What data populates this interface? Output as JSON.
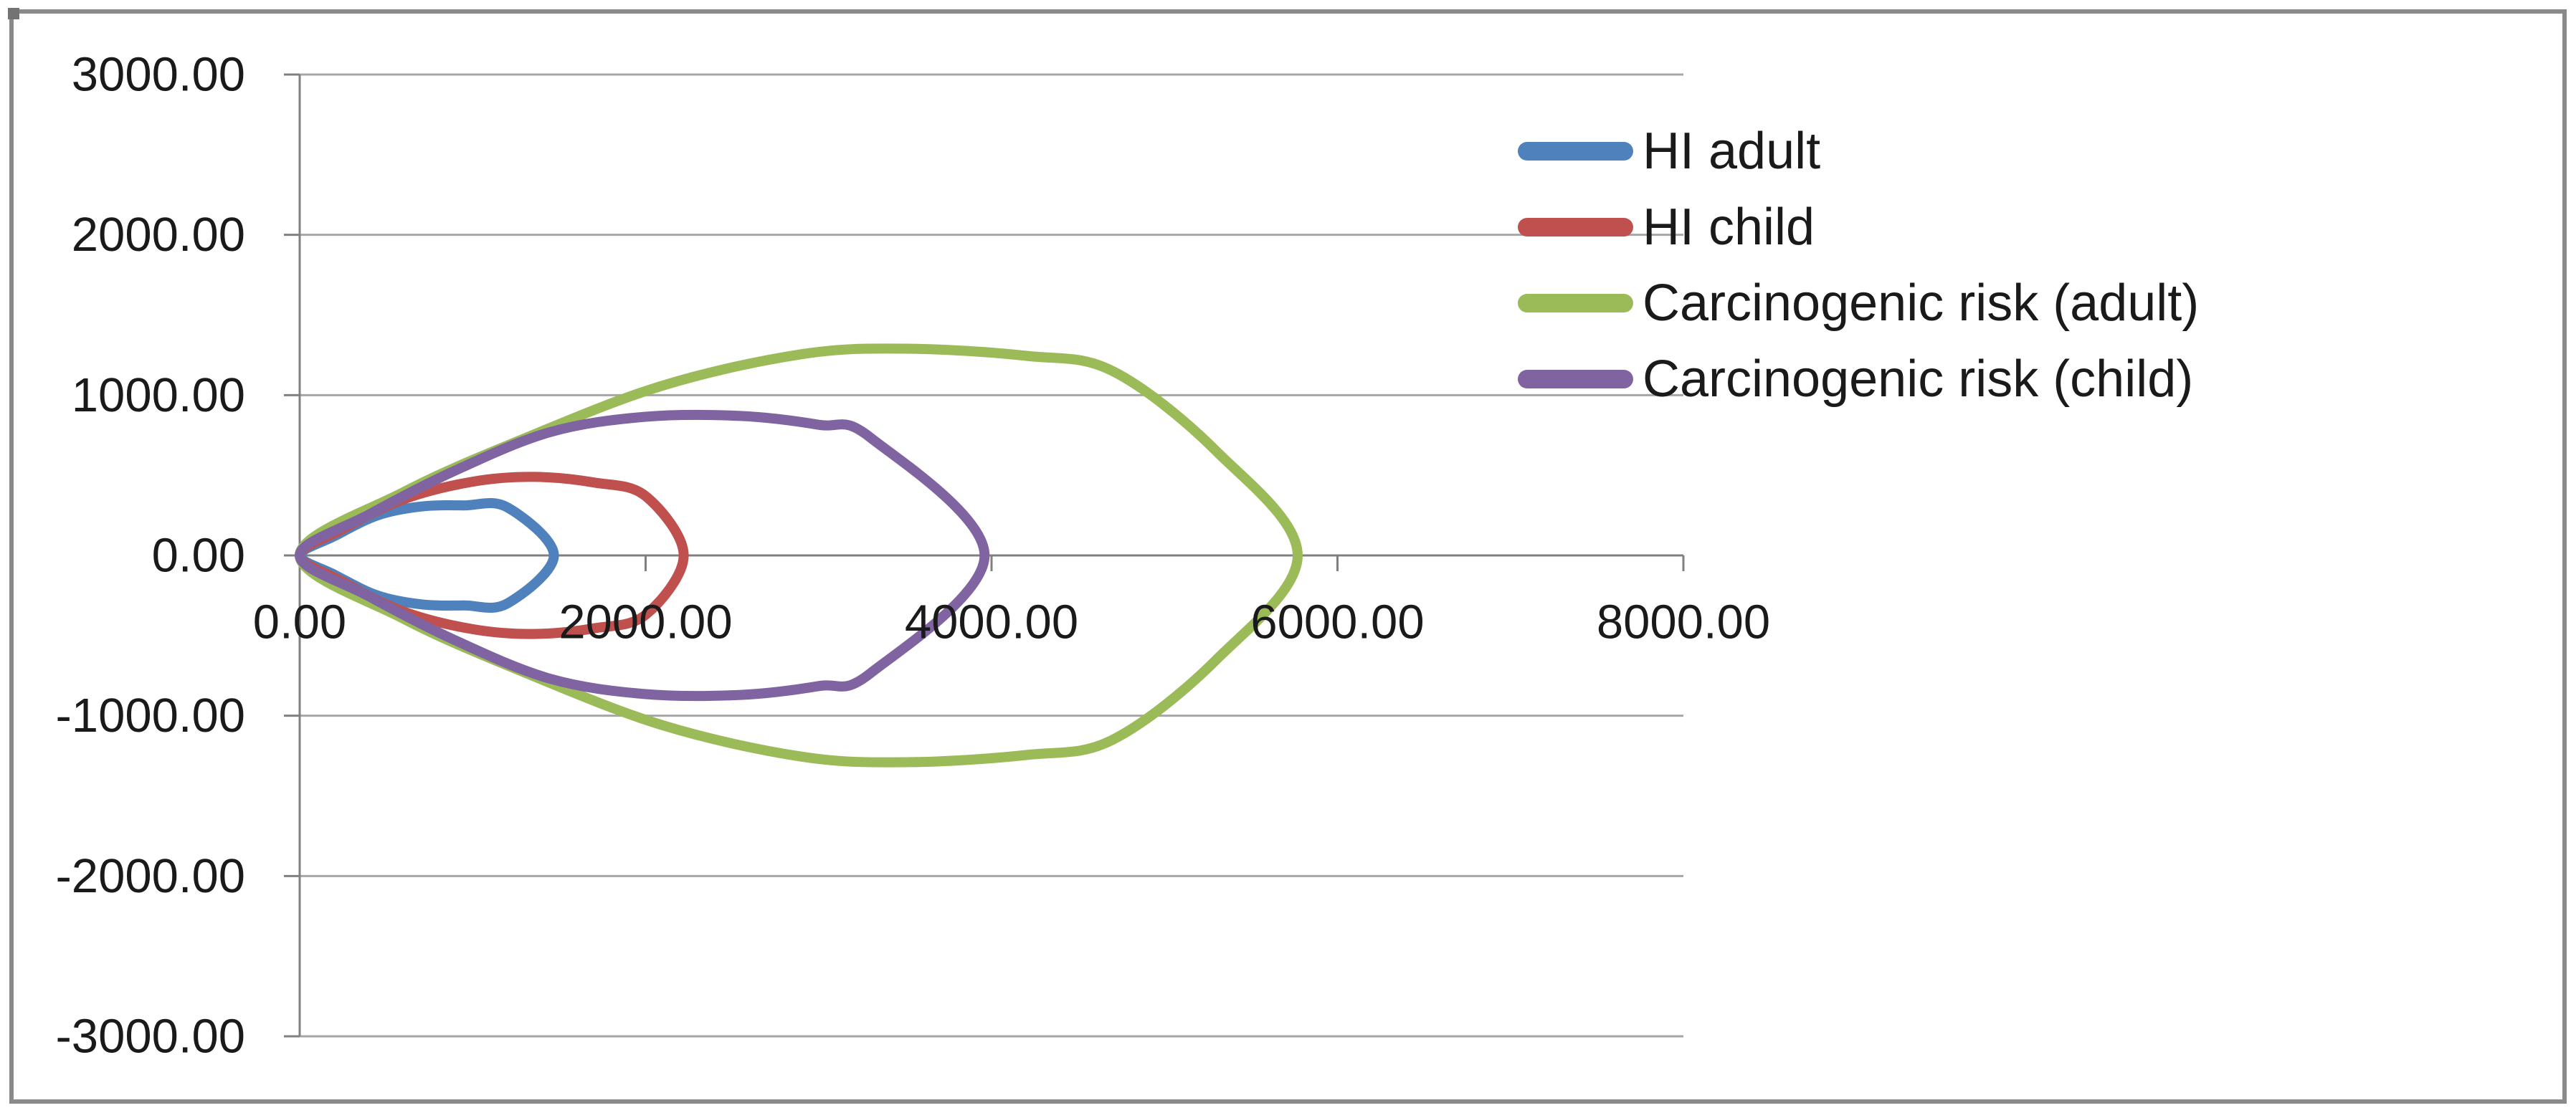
{
  "chart_data": {
    "type": "scatter",
    "subtype": "smooth-closed-petals",
    "title": "",
    "xlabel": "",
    "ylabel": "",
    "grid": "horizontal-only",
    "legend_position": "right",
    "x_axis": {
      "min": 0,
      "max": 8000,
      "major_unit": 2000,
      "tick_labels": [
        "0.00",
        "2000.00",
        "4000.00",
        "6000.00",
        "8000.00"
      ]
    },
    "y_axis": {
      "min": -3000,
      "max": 3000,
      "major_unit": 1000,
      "tick_labels": [
        "3000.00",
        "2000.00",
        "1000.00",
        "0.00",
        "-1000.00",
        "-2000.00",
        "-3000.00"
      ]
    },
    "series": [
      {
        "name": "HI adult",
        "color": "#4F81BD",
        "points": [
          [
            0,
            0
          ],
          [
            200,
            120
          ],
          [
            450,
            250
          ],
          [
            700,
            305
          ],
          [
            950,
            312
          ],
          [
            1200,
            300
          ],
          [
            1470,
            0
          ],
          [
            1200,
            -300
          ],
          [
            950,
            -312
          ],
          [
            700,
            -305
          ],
          [
            450,
            -250
          ],
          [
            200,
            -120
          ]
        ]
      },
      {
        "name": "HI child",
        "color": "#C0504D",
        "points": [
          [
            0,
            0
          ],
          [
            250,
            165
          ],
          [
            600,
            350
          ],
          [
            1000,
            460
          ],
          [
            1350,
            490
          ],
          [
            1700,
            455
          ],
          [
            2000,
            370
          ],
          [
            2220,
            0
          ],
          [
            2000,
            -370
          ],
          [
            1700,
            -455
          ],
          [
            1350,
            -490
          ],
          [
            1000,
            -460
          ],
          [
            600,
            -350
          ],
          [
            250,
            -165
          ]
        ]
      },
      {
        "name": "Carcinogenic risk (adult)",
        "color": "#9BBB59",
        "points": [
          [
            0,
            0
          ],
          [
            600,
            395
          ],
          [
            1300,
            730
          ],
          [
            2100,
            1060
          ],
          [
            2900,
            1255
          ],
          [
            3500,
            1290
          ],
          [
            4200,
            1245
          ],
          [
            4700,
            1150
          ],
          [
            5300,
            650
          ],
          [
            5770,
            0
          ],
          [
            5300,
            -650
          ],
          [
            4700,
            -1150
          ],
          [
            4200,
            -1245
          ],
          [
            3500,
            -1290
          ],
          [
            2900,
            -1255
          ],
          [
            2100,
            -1060
          ],
          [
            1300,
            -730
          ],
          [
            600,
            -395
          ]
        ]
      },
      {
        "name": "Carcinogenic risk (child)",
        "color": "#8064A2",
        "points": [
          [
            0,
            0
          ],
          [
            400,
            255
          ],
          [
            900,
            530
          ],
          [
            1450,
            770
          ],
          [
            2000,
            865
          ],
          [
            2550,
            870
          ],
          [
            3000,
            815
          ],
          [
            3300,
            735
          ],
          [
            3960,
            0
          ],
          [
            3300,
            -735
          ],
          [
            3000,
            -815
          ],
          [
            2550,
            -870
          ],
          [
            2000,
            -865
          ],
          [
            1450,
            -770
          ],
          [
            900,
            -530
          ],
          [
            400,
            -255
          ]
        ]
      }
    ]
  },
  "legend": {
    "items": [
      {
        "label": "HI adult",
        "color": "#4F81BD"
      },
      {
        "label": "HI child",
        "color": "#C0504D"
      },
      {
        "label": "Carcinogenic risk (adult)",
        "color": "#9BBB59"
      },
      {
        "label": "Carcinogenic risk (child)",
        "color": "#8064A2"
      }
    ]
  },
  "style": {
    "gridline_color": "#A6A6A6",
    "axis_color": "#808080",
    "label_color": "#1a1a1a",
    "frame_color": "#8a8a8a",
    "background": "#ffffff"
  }
}
